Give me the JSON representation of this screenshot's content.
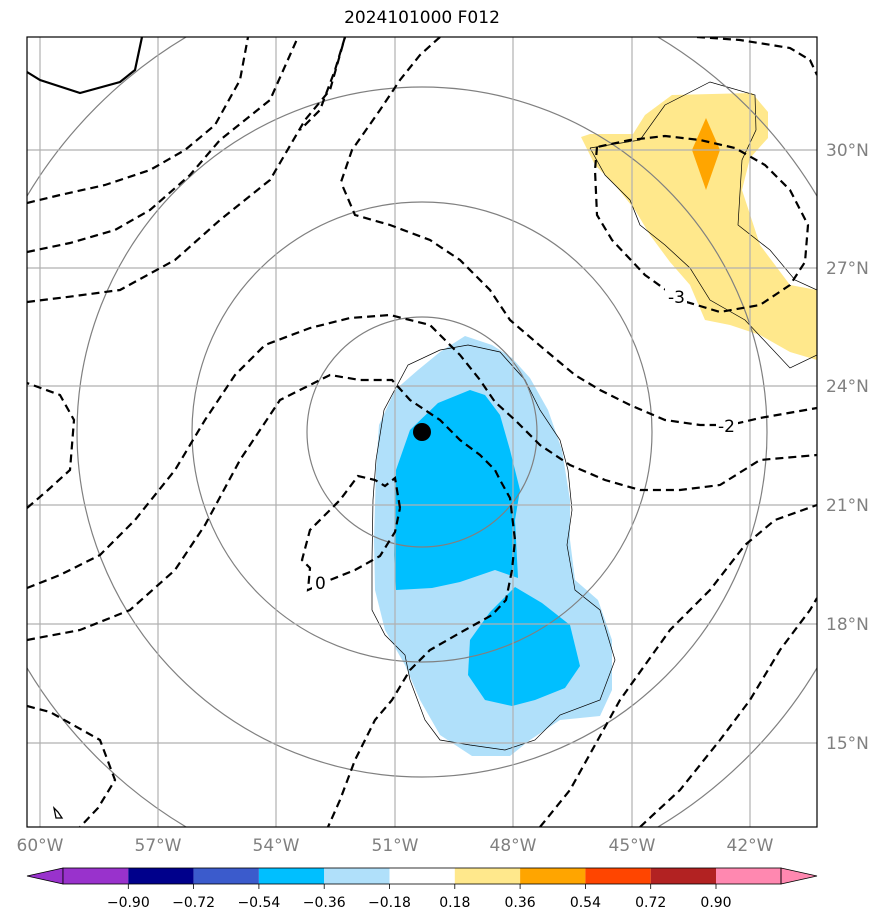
{
  "title": "2024101000 F012",
  "map": {
    "lon_labels": [
      "60°W",
      "57°W",
      "54°W",
      "51°W",
      "48°W",
      "45°W",
      "42°W"
    ],
    "lat_labels": [
      "30°N",
      "27°N",
      "24°N",
      "21°N",
      "18°N",
      "15°N"
    ],
    "storm_center": {
      "lon": "50.7°W",
      "lat": "22.8°N"
    },
    "contour_labels": [
      "-3",
      "-2",
      "0"
    ],
    "gridlines": true
  },
  "colorbar": {
    "ticks": [
      "−0.90",
      "−0.72",
      "−0.54",
      "−0.36",
      "−0.18",
      "0.18",
      "0.36",
      "0.54",
      "0.72",
      "0.90"
    ],
    "colors": [
      "#9932cc",
      "#00008b",
      "#3b5bcc",
      "#00bfff",
      "#b0e0fa",
      "#ffffff",
      "#ffe88c",
      "#ffa500",
      "#ff4500",
      "#b22222",
      "#ff88b0"
    ]
  }
}
